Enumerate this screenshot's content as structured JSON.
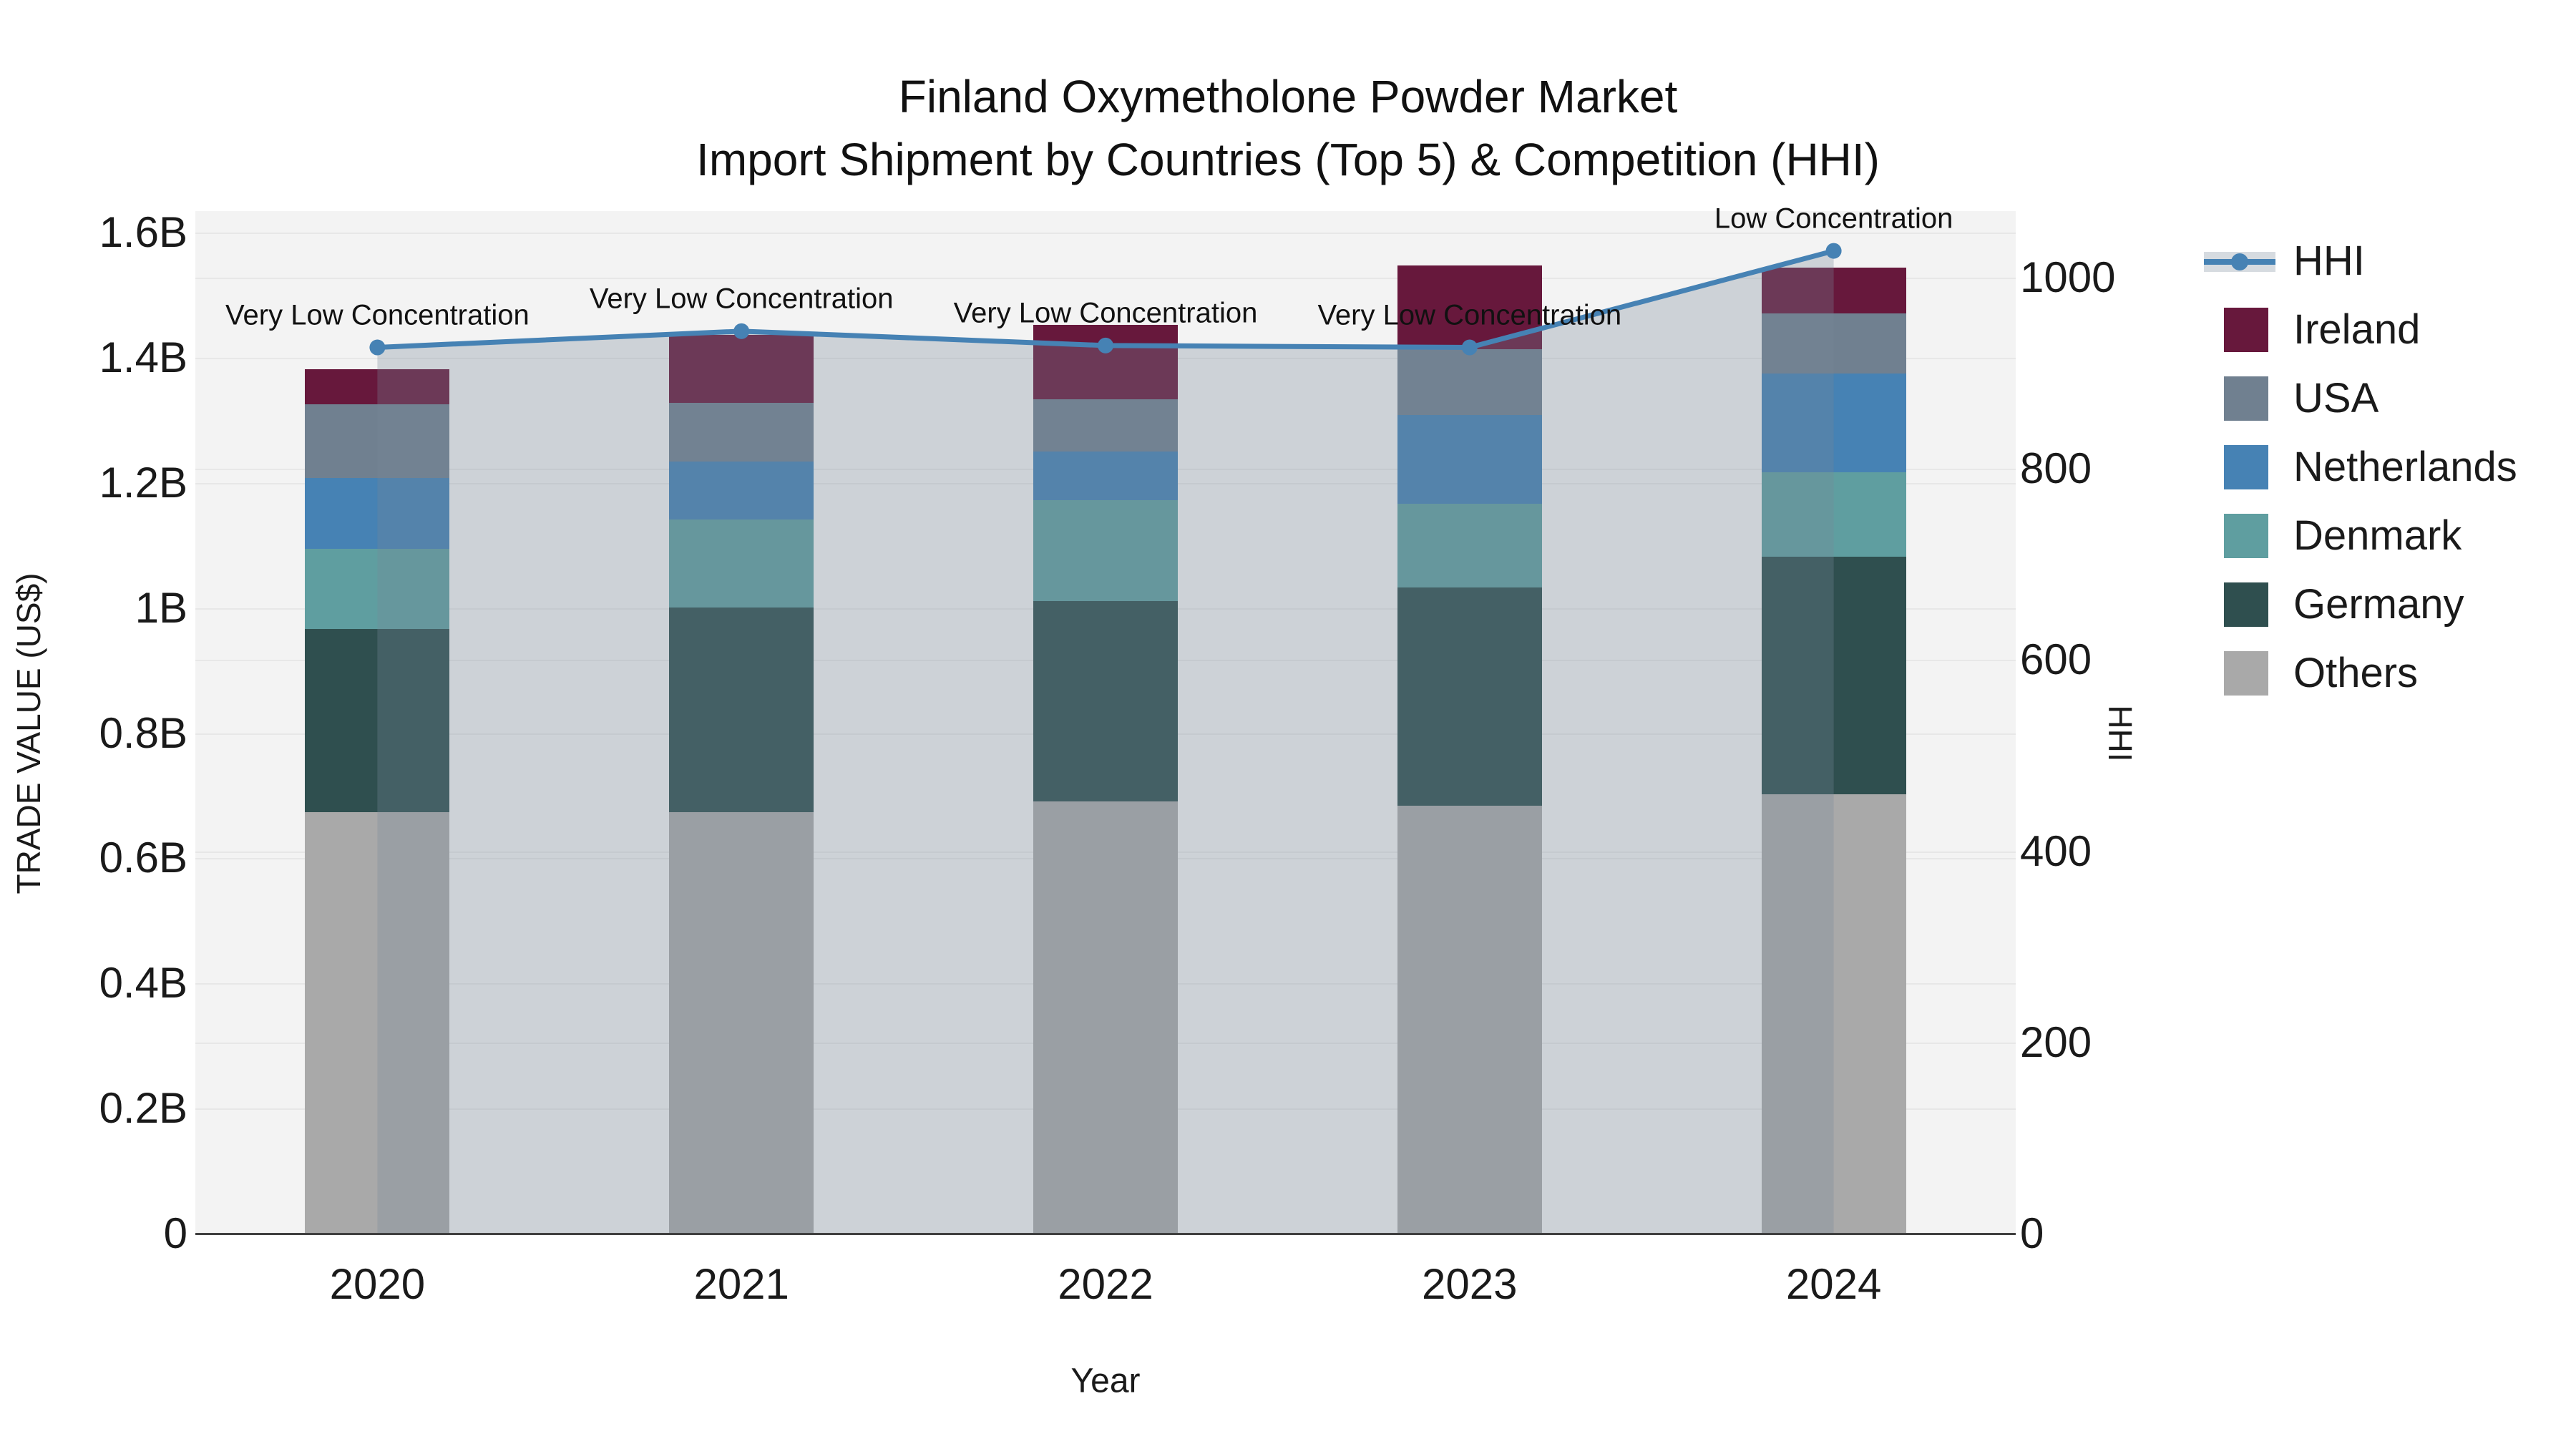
{
  "title": {
    "line1": "Finland Oxymetholone Powder Market",
    "line2": "Import Shipment by Countries (Top 5) & Competition (HHI)"
  },
  "axes": {
    "x": {
      "title": "Year",
      "categories": [
        "2020",
        "2021",
        "2022",
        "2023",
        "2024"
      ]
    },
    "y_left": {
      "title": "TRADE VALUE (US$)",
      "tick_labels": [
        "0",
        "0.2B",
        "0.4B",
        "0.6B",
        "0.8B",
        "1B",
        "1.2B",
        "1.4B",
        "1.6B"
      ],
      "tick_values_B": [
        0,
        0.2,
        0.4,
        0.6,
        0.8,
        1.0,
        1.2,
        1.4,
        1.6
      ],
      "range_B": [
        0,
        1.6
      ]
    },
    "y_right": {
      "title": "HHI",
      "tick_labels": [
        "0",
        "200",
        "400",
        "600",
        "800",
        "1000"
      ],
      "tick_values": [
        0,
        200,
        400,
        600,
        800,
        1000
      ],
      "range": [
        0,
        1070
      ]
    }
  },
  "chart_data": {
    "type": "stacked-bar-with-line",
    "categories": [
      "2020",
      "2021",
      "2022",
      "2023",
      "2024"
    ],
    "stack_order_bottom_to_top": [
      "Others",
      "Germany",
      "Denmark",
      "Netherlands",
      "USA",
      "Ireland"
    ],
    "series": [
      {
        "name": "Ireland",
        "color": "#67183C",
        "values_B": [
          0.056,
          0.108,
          0.12,
          0.133,
          0.073
        ]
      },
      {
        "name": "USA",
        "color": "#708090",
        "values_B": [
          0.118,
          0.094,
          0.083,
          0.106,
          0.096
        ]
      },
      {
        "name": "Netherlands",
        "color": "#4682B4",
        "values_B": [
          0.113,
          0.093,
          0.078,
          0.142,
          0.158
        ]
      },
      {
        "name": "Denmark",
        "color": "#5F9EA0",
        "values_B": [
          0.129,
          0.14,
          0.161,
          0.133,
          0.135
        ]
      },
      {
        "name": "Germany",
        "color": "#2F4F4F",
        "values_B": [
          0.292,
          0.327,
          0.32,
          0.349,
          0.38
        ]
      },
      {
        "name": "Others",
        "color": "#A9A9A9",
        "values_B": [
          0.674,
          0.674,
          0.691,
          0.684,
          0.702
        ]
      }
    ],
    "totals_B": [
      1.382,
      1.436,
      1.453,
      1.547,
      1.544
    ],
    "line": {
      "name": "HHI",
      "axis": "right",
      "color": "#4682B4",
      "fill_color": "rgba(119,136,153,0.30)",
      "values": [
        927,
        944,
        929,
        927,
        1028
      ]
    },
    "annotations": [
      {
        "category": "2020",
        "text": "Very Low Concentration"
      },
      {
        "category": "2021",
        "text": "Very Low Concentration"
      },
      {
        "category": "2022",
        "text": "Very Low Concentration"
      },
      {
        "category": "2023",
        "text": "Very Low Concentration"
      },
      {
        "category": "2024",
        "text": "Low Concentration"
      }
    ]
  },
  "legend": {
    "items": [
      {
        "label": "HHI",
        "type": "line",
        "color": "#4682B4",
        "band_color": "rgba(119,136,153,0.30)"
      },
      {
        "label": "Ireland",
        "type": "square",
        "color": "#67183C"
      },
      {
        "label": "USA",
        "type": "square",
        "color": "#708090"
      },
      {
        "label": "Netherlands",
        "type": "square",
        "color": "#4682B4"
      },
      {
        "label": "Denmark",
        "type": "square",
        "color": "#5F9EA0"
      },
      {
        "label": "Germany",
        "type": "square",
        "color": "#2F4F4F"
      },
      {
        "label": "Others",
        "type": "square",
        "color": "#A9A9A9"
      }
    ]
  },
  "colors": {
    "plot_bg": "#F3F3F3",
    "grid": "#E7E7E7",
    "axis_line": "#404040",
    "text": "#1A1A1A"
  }
}
